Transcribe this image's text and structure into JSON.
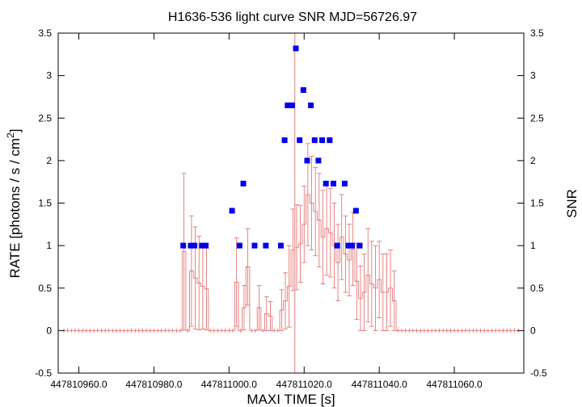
{
  "chart_data": {
    "type": "scatter",
    "title": "H1636-536 light curve  SNR MJD=56726.97",
    "xlabel": "MAXI TIME [s]",
    "ylabel_left": "RATE [photons / s / cm",
    "ylabel_left_sup": "2",
    "ylabel_left_end": "]",
    "ylabel_right": "SNR",
    "xlim": [
      447810954.5,
      447811078.5
    ],
    "ylim": [
      -0.5,
      3.5
    ],
    "x_tick_values": [
      447810960,
      447810980,
      447811000,
      447811020,
      447811040,
      447811060
    ],
    "x_tick_labels": [
      "447810960.0",
      "447810980.0",
      "447811000.0",
      "447811020.0",
      "447811040.0",
      "447811060.0"
    ],
    "y_tick_values": [
      -0.5,
      0,
      0.5,
      1,
      1.5,
      2,
      2.5,
      3,
      3.5
    ],
    "y_tick_labels": [
      "-0.5",
      "0",
      "0.5",
      "1",
      "1.5",
      "2",
      "2.5",
      "3",
      "3.5"
    ],
    "marker_time": 447811017.5,
    "colors": {
      "rate": "#e06666",
      "snr": "#0000ee",
      "marker": "#e8a0a0"
    },
    "rate_series": {
      "name": "RATE",
      "x_start": 447810955.5,
      "bin": 1,
      "bins": 122,
      "values": {
        "32": 0.93,
        "34": 0.7,
        "35": 0.62,
        "36": 0.56,
        "37": 0.52,
        "38": 0.49,
        "46": 0.57,
        "48": 0.27,
        "49": 0.75,
        "52": 0.27,
        "54": 0.2,
        "55": 0.17,
        "58": 0.24,
        "59": 0.35,
        "60": 0.52,
        "61": 0.95,
        "62": 0.98,
        "63": 1.02,
        "64": 1.25,
        "65": 1.6,
        "66": 1.5,
        "67": 1.4,
        "68": 1.3,
        "69": 1.1,
        "70": 1.2,
        "71": 1.15,
        "72": 1.0,
        "73": 0.8,
        "74": 1.1,
        "75": 0.9,
        "76": 0.83,
        "77": 0.96,
        "78": 0.58,
        "79": 0.38,
        "80": 0.45,
        "81": 0.65,
        "82": 0.55,
        "83": 0.5,
        "84": 0.6,
        "85": 0.45,
        "86": 0.45,
        "87": 0.5,
        "88": 0.35
      },
      "errors": {
        "32": 0.92,
        "34": 0.65,
        "35": 0.6,
        "36": 0.55,
        "37": 0.5,
        "38": 0.48,
        "46": 0.52,
        "48": 0.26,
        "49": 0.45,
        "52": 0.26,
        "54": 0.2,
        "55": 0.17,
        "58": 0.24,
        "59": 0.33,
        "60": 0.48,
        "61": 0.48,
        "62": 0.5,
        "63": 0.45,
        "64": 0.45,
        "65": 0.6,
        "66": 0.55,
        "67": 0.52,
        "68": 0.55,
        "69": 0.55,
        "70": 0.55,
        "71": 0.52,
        "72": 0.5,
        "73": 0.45,
        "74": 0.5,
        "75": 0.45,
        "76": 0.42,
        "77": 0.43,
        "78": 0.45,
        "79": 0.38,
        "80": 0.45,
        "81": 0.55,
        "82": 0.5,
        "83": 0.5,
        "84": 0.45,
        "85": 0.45,
        "86": 0.45,
        "87": 0.45,
        "88": 0.35
      }
    },
    "snr_series": {
      "name": "SNR",
      "points": [
        [
          447810987.8,
          1.0
        ],
        [
          447810989.8,
          1.0
        ],
        [
          447810990.8,
          1.0
        ],
        [
          447810992.8,
          1.0
        ],
        [
          447810993.8,
          1.0
        ],
        [
          447811000.8,
          1.41
        ],
        [
          447811002.8,
          1.0
        ],
        [
          447811003.8,
          1.73
        ],
        [
          447811006.8,
          1.0
        ],
        [
          447811009.8,
          1.0
        ],
        [
          447811013.8,
          1.0
        ],
        [
          447811014.8,
          2.24
        ],
        [
          447811015.6,
          2.65
        ],
        [
          447811016.8,
          2.65
        ],
        [
          447811017.8,
          3.32
        ],
        [
          447811018.8,
          2.24
        ],
        [
          447811019.8,
          2.83
        ],
        [
          447811020.8,
          2.0
        ],
        [
          447811021.8,
          2.65
        ],
        [
          447811022.8,
          2.24
        ],
        [
          447811023.8,
          2.0
        ],
        [
          447811024.8,
          2.24
        ],
        [
          447811025.8,
          1.73
        ],
        [
          447811026.8,
          2.24
        ],
        [
          447811027.8,
          1.73
        ],
        [
          447811028.8,
          1.0
        ],
        [
          447811030.8,
          1.73
        ],
        [
          447811031.8,
          1.0
        ],
        [
          447811032.8,
          1.0
        ],
        [
          447811033.8,
          1.41
        ],
        [
          447811034.8,
          1.0
        ]
      ]
    }
  }
}
